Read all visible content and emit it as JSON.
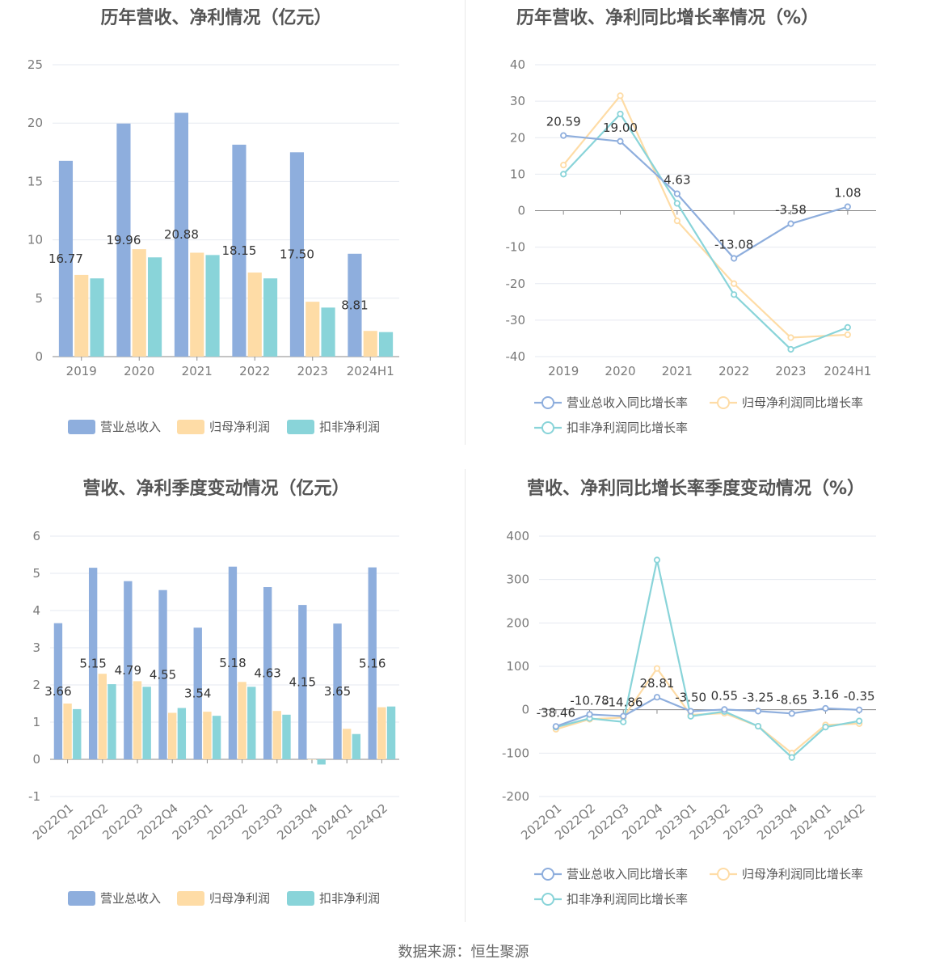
{
  "footer": "数据来源：恒生聚源",
  "colors": {
    "revenue": "#8eaedd",
    "net_profit": "#fedca6",
    "deducted_profit": "#89d4d9"
  },
  "chart_data": [
    {
      "id": "annual-amount",
      "type": "bar",
      "title": "历年营收、净利情况（亿元）",
      "categories": [
        "2019",
        "2020",
        "2021",
        "2022",
        "2023",
        "2024H1"
      ],
      "ylim": [
        0,
        25
      ],
      "yticks": [
        0,
        5,
        10,
        15,
        20,
        25
      ],
      "grid": true,
      "legend_position": "bottom",
      "series": [
        {
          "name": "营业总收入",
          "values": [
            16.77,
            19.96,
            20.88,
            18.15,
            17.5,
            8.81
          ],
          "labels": [
            "16.77",
            "19.96",
            "20.88",
            "18.15",
            "17.50",
            "8.81"
          ]
        },
        {
          "name": "归母净利润",
          "values": [
            7.0,
            9.2,
            8.9,
            7.2,
            4.7,
            2.2
          ]
        },
        {
          "name": "扣非净利润",
          "values": [
            6.7,
            8.5,
            8.7,
            6.7,
            4.2,
            2.1
          ]
        }
      ]
    },
    {
      "id": "annual-growth",
      "type": "line",
      "title": "历年营收、净利同比增长率情况（%）",
      "categories": [
        "2019",
        "2020",
        "2021",
        "2022",
        "2023",
        "2024H1"
      ],
      "ylim": [
        -40,
        40
      ],
      "yticks": [
        -40,
        -30,
        -20,
        -10,
        0,
        10,
        20,
        30,
        40
      ],
      "grid": true,
      "legend_position": "bottom",
      "series": [
        {
          "name": "营业总收入同比增长率",
          "values": [
            20.59,
            19.0,
            4.63,
            -13.08,
            -3.58,
            1.08
          ],
          "labels": [
            "20.59",
            "19.00",
            "4.63",
            "-13.08",
            "-3.58",
            "1.08"
          ]
        },
        {
          "name": "归母净利润同比增长率",
          "values": [
            12.5,
            31.5,
            -2.8,
            -20.0,
            -34.8,
            -34.0
          ]
        },
        {
          "name": "扣非净利润同比增长率",
          "values": [
            10.0,
            26.5,
            2.0,
            -23.0,
            -38.0,
            -32.0
          ]
        }
      ]
    },
    {
      "id": "quarterly-amount",
      "type": "bar",
      "title": "营收、净利季度变动情况（亿元）",
      "categories": [
        "2022Q1",
        "2022Q2",
        "2022Q3",
        "2022Q4",
        "2023Q1",
        "2023Q2",
        "2023Q3",
        "2023Q4",
        "2024Q1",
        "2024Q2"
      ],
      "ylim": [
        -1,
        6
      ],
      "yticks": [
        -1,
        0,
        1,
        2,
        3,
        4,
        5,
        6
      ],
      "grid": true,
      "legend_position": "bottom",
      "series": [
        {
          "name": "营业总收入",
          "values": [
            3.66,
            5.15,
            4.79,
            4.55,
            3.54,
            5.18,
            4.63,
            4.15,
            3.65,
            5.16
          ],
          "labels": [
            "3.66",
            "5.15",
            "4.79",
            "4.55",
            "3.54",
            "5.18",
            "4.63",
            "4.15",
            "3.65",
            "5.16"
          ]
        },
        {
          "name": "归母净利润",
          "values": [
            1.5,
            2.3,
            2.1,
            1.25,
            1.28,
            2.08,
            1.3,
            0.0,
            0.82,
            1.4
          ]
        },
        {
          "name": "扣非净利润",
          "values": [
            1.35,
            2.02,
            1.95,
            1.38,
            1.17,
            1.95,
            1.2,
            -0.14,
            0.68,
            1.42
          ]
        }
      ]
    },
    {
      "id": "quarterly-growth",
      "type": "line",
      "title": "营收、净利同比增长率季度变动情况（%）",
      "categories": [
        "2022Q1",
        "2022Q2",
        "2022Q3",
        "2022Q4",
        "2023Q1",
        "2023Q2",
        "2023Q3",
        "2023Q4",
        "2024Q1",
        "2024Q2"
      ],
      "ylim": [
        -200,
        400
      ],
      "yticks": [
        -200,
        -100,
        0,
        100,
        200,
        300,
        400
      ],
      "grid": true,
      "legend_position": "bottom",
      "series": [
        {
          "name": "营业总收入同比增长率",
          "values": [
            -38.46,
            -10.78,
            -14.86,
            28.81,
            -3.5,
            0.55,
            -3.25,
            -8.65,
            3.16,
            -0.35
          ],
          "labels": [
            "-38.46",
            "-10.78",
            "-14.86",
            "28.81",
            "-3.50",
            "0.55",
            "-3.25",
            "-8.65",
            "3.16",
            "-0.35"
          ]
        },
        {
          "name": "归母净利润同比增长率",
          "values": [
            -45,
            -22,
            -18,
            95,
            -12,
            -8,
            -38,
            -100,
            -35,
            -32
          ]
        },
        {
          "name": "扣非净利润同比增长率",
          "values": [
            -40,
            -20,
            -28,
            345,
            -15,
            -4,
            -38,
            -110,
            -40,
            -26
          ]
        }
      ]
    }
  ]
}
